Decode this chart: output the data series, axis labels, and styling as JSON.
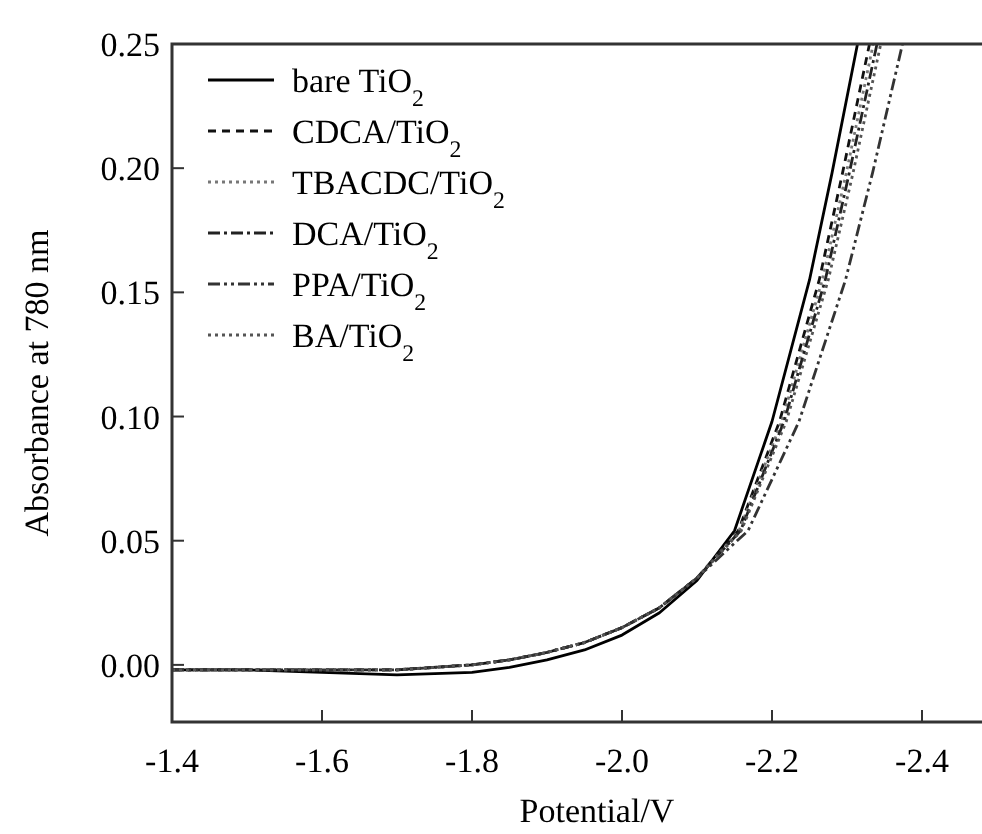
{
  "chart_data": {
    "type": "line",
    "xlabel": "Potential/V",
    "ylabel": "Absorbance at 780 nm",
    "xlim": [
      -1.4,
      -2.48
    ],
    "ylim": [
      -0.023,
      0.25
    ],
    "xticks": [
      -1.4,
      -1.6,
      -1.8,
      {
        "value": -2,
        "label": "-2.0"
      },
      -2.2,
      -2.4
    ],
    "yticks": [
      {
        "value": 0,
        "label": "0.00"
      },
      0.05,
      {
        "value": 0.1,
        "label": "0.10"
      },
      0.15,
      {
        "value": 0.2,
        "label": "0.20"
      },
      0.25
    ],
    "legend": "top left",
    "grid": false,
    "marker": "none",
    "series": [
      {
        "name": "bare TiO$_{2}$",
        "color": "#000000",
        "line_style": "solid",
        "x": [
          -1.4,
          -1.5,
          -1.6,
          -1.7,
          -1.8,
          -1.85,
          -1.9,
          -1.95,
          -2.0,
          -2.05,
          -2.1,
          -2.15,
          -2.2,
          -2.25,
          -2.28,
          -2.314
        ],
        "values": [
          -0.002,
          -0.002,
          -0.003,
          -0.004,
          -0.003,
          -0.001,
          0.002,
          0.006,
          0.012,
          0.021,
          0.034,
          0.054,
          0.098,
          0.155,
          0.198,
          0.25
        ]
      },
      {
        "name": "CDCA/TiO$_{2}$",
        "color": "#111111",
        "line_style": "dashed",
        "x": [
          -1.4,
          -1.5,
          -1.6,
          -1.7,
          -1.8,
          -1.85,
          -1.9,
          -1.95,
          -2.0,
          -2.05,
          -2.1,
          -2.155,
          -2.21,
          -2.263,
          -2.294,
          -2.33
        ],
        "values": [
          -0.002,
          -0.002,
          -0.002,
          -0.002,
          0.0,
          0.002,
          0.005,
          0.009,
          0.015,
          0.023,
          0.035,
          0.054,
          0.098,
          0.155,
          0.198,
          0.25
        ]
      },
      {
        "name": "TBACDC/TiO$_{2}$",
        "color": "#777777",
        "line_style": "dotted",
        "x": [
          -1.4,
          -1.5,
          -1.6,
          -1.7,
          -1.8,
          -1.85,
          -1.9,
          -1.95,
          -2.0,
          -2.05,
          -2.1,
          -2.156,
          -2.213,
          -2.267,
          -2.299,
          -2.335
        ],
        "values": [
          -0.002,
          -0.002,
          -0.002,
          -0.002,
          0.0,
          0.002,
          0.005,
          0.009,
          0.015,
          0.023,
          0.035,
          0.054,
          0.098,
          0.155,
          0.198,
          0.25
        ]
      },
      {
        "name": "DCA/TiO$_{2}$",
        "color": "#222222",
        "line_style": "dashdot",
        "x": [
          -1.4,
          -1.5,
          -1.6,
          -1.7,
          -1.8,
          -1.85,
          -1.9,
          -1.95,
          -2.0,
          -2.05,
          -2.1,
          -2.158,
          -2.216,
          -2.271,
          -2.303,
          -2.34
        ],
        "values": [
          -0.002,
          -0.002,
          -0.002,
          -0.002,
          0.0,
          0.002,
          0.005,
          0.009,
          0.015,
          0.023,
          0.035,
          0.054,
          0.098,
          0.155,
          0.198,
          0.25
        ]
      },
      {
        "name": "PPA/TiO$_{2}$",
        "color": "#333333",
        "line_style": "dashdotdot",
        "x": [
          -1.4,
          -1.5,
          -1.6,
          -1.7,
          -1.8,
          -1.85,
          -1.9,
          -1.95,
          -2.0,
          -2.05,
          -2.1,
          -2.168,
          -2.236,
          -2.298,
          -2.334,
          -2.374
        ],
        "values": [
          -0.002,
          -0.002,
          -0.002,
          -0.002,
          0.0,
          0.002,
          0.005,
          0.009,
          0.015,
          0.023,
          0.035,
          0.054,
          0.098,
          0.155,
          0.198,
          0.25
        ]
      },
      {
        "name": "BA/TiO$_{2}$",
        "color": "#555555",
        "line_style": "dotted",
        "x": [
          -1.4,
          -1.5,
          -1.6,
          -1.7,
          -1.8,
          -1.85,
          -1.9,
          -1.95,
          -2.0,
          -2.05,
          -2.1,
          -2.159,
          -2.219,
          -2.275,
          -2.308,
          -2.345
        ],
        "values": [
          -0.002,
          -0.002,
          -0.002,
          -0.002,
          0.0,
          0.002,
          0.005,
          0.009,
          0.015,
          0.023,
          0.035,
          0.054,
          0.098,
          0.155,
          0.198,
          0.25
        ]
      }
    ]
  }
}
